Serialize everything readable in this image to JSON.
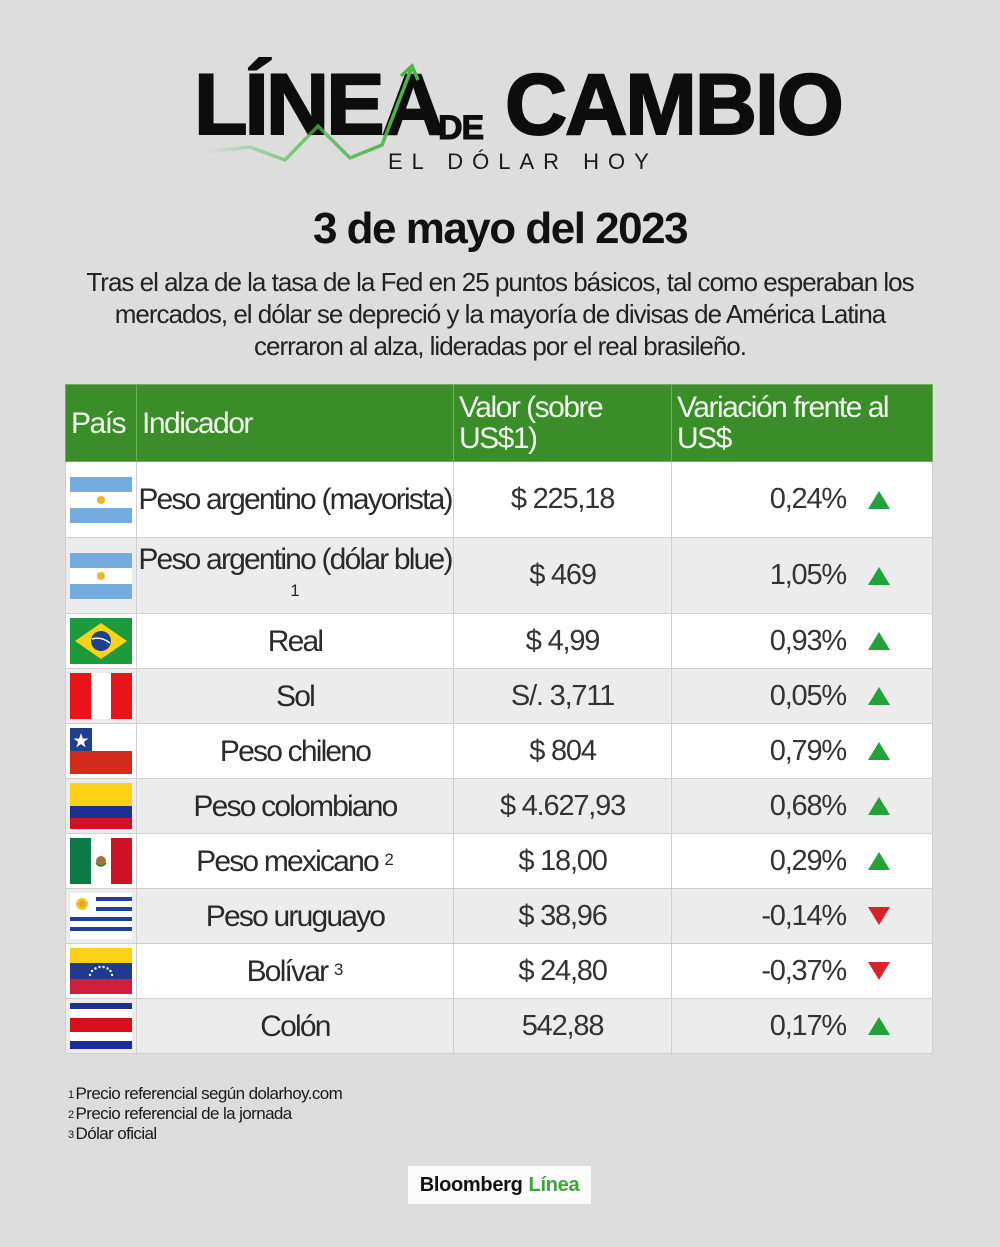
{
  "logo": {
    "word1": "LÍNEA",
    "word2": "DE",
    "word3": "CAMBIO",
    "subtitle": "EL DÓLAR HOY",
    "line_color": "#4cb84a"
  },
  "date": "3 de mayo del 2023",
  "intro": "Tras el alza de la tasa de la Fed en 25 puntos básicos, tal como esperaban los mercados, el dólar se depreció y la mayoría de divisas de América Latina cerraron al alza, lideradas por el real brasileño.",
  "table": {
    "header_color": "#3a8d28",
    "headers": {
      "country": "País",
      "indicator": "Indicador",
      "value": "Valor (sobre US$1)",
      "variation": "Variación frente al US$"
    },
    "rows": [
      {
        "flag": "argentina-flag",
        "indicator": "Peso argentino (mayorista)",
        "note": "",
        "value": "$ 225,18",
        "variation": "0,24%",
        "direction": "up"
      },
      {
        "flag": "argentina-flag",
        "indicator": "Peso argentino (dólar blue)",
        "note": "1",
        "value": "$ 469",
        "variation": "1,05%",
        "direction": "up"
      },
      {
        "flag": "brazil-flag",
        "indicator": "Real",
        "note": "",
        "value": "$ 4,99",
        "variation": "0,93%",
        "direction": "up"
      },
      {
        "flag": "peru-flag",
        "indicator": "Sol",
        "note": "",
        "value": "S/. 3,711",
        "variation": "0,05%",
        "direction": "up"
      },
      {
        "flag": "chile-flag",
        "indicator": "Peso chileno",
        "note": "",
        "value": "$ 804",
        "variation": "0,79%",
        "direction": "up"
      },
      {
        "flag": "colombia-flag",
        "indicator": "Peso colombiano",
        "note": "",
        "value": "$ 4.627,93",
        "variation": "0,68%",
        "direction": "up"
      },
      {
        "flag": "mexico-flag",
        "indicator": "Peso mexicano",
        "note": "2",
        "value": "$ 18,00",
        "variation": "0,29%",
        "direction": "up"
      },
      {
        "flag": "uruguay-flag",
        "indicator": "Peso uruguayo",
        "note": "",
        "value": "$ 38,96",
        "variation": "-0,14%",
        "direction": "down"
      },
      {
        "flag": "venezuela-flag",
        "indicator": "Bolívar",
        "note": "3",
        "value": "$ 24,80",
        "variation": "-0,37%",
        "direction": "down"
      },
      {
        "flag": "costa-rica-flag",
        "indicator": "Colón",
        "note": "",
        "value": "542,88",
        "variation": "0,17%",
        "direction": "up"
      }
    ],
    "up_color": "#23a13a",
    "down_color": "#d9232b"
  },
  "footnotes": [
    {
      "mark": "1",
      "text": "Precio referencial según dolarhoy.com"
    },
    {
      "mark": "2",
      "text": "Precio referencial de la jornada"
    },
    {
      "mark": "3",
      "text": "Dólar oficial"
    }
  ],
  "brand": {
    "name": "Bloomberg",
    "suffix": "Línea",
    "suffix_color": "#3aa63a"
  }
}
